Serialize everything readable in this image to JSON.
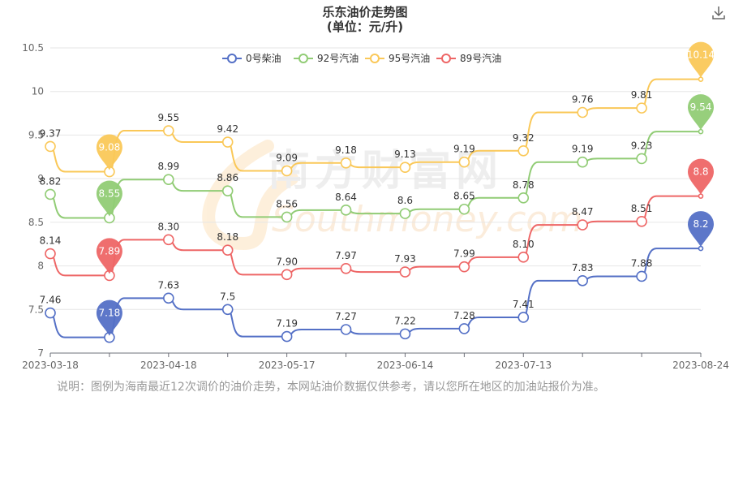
{
  "chart_data": {
    "type": "line",
    "title": "乐东油价走势图",
    "subtitle": "(单位：元/升)",
    "x": [
      "2023-03-18",
      "2023-03-31",
      "2023-04-18",
      "2023-05-04",
      "2023-05-17",
      "2023-06-01",
      "2023-06-14",
      "2023-06-28",
      "2023-07-13",
      "2023-07-27",
      "2023-08-09",
      "2023-08-24"
    ],
    "x_tick_labels": [
      "2023-03-18",
      "2023-04-18",
      "2023-05-17",
      "2023-06-14",
      "2023-07-13",
      "2023-08-24"
    ],
    "ylim": [
      7,
      10.5
    ],
    "y_ticks": [
      "7",
      "7.5",
      "8",
      "8.5",
      "9",
      "9.5",
      "10",
      "10.5"
    ],
    "legend": "top-center",
    "series": [
      {
        "name": "0号柴油",
        "color": "#5470c6",
        "values": [
          7.46,
          7.18,
          7.63,
          7.5,
          7.19,
          7.27,
          7.22,
          7.28,
          7.41,
          7.83,
          7.88,
          8.2
        ],
        "labels": [
          "7.46",
          "7.18",
          "7.63",
          "7.5",
          "7.19",
          "7.27",
          "7.22",
          "7.28",
          "7.41",
          "7.83",
          "7.88",
          "8.2"
        ],
        "markers": [
          {
            "index": 1,
            "label": "7.18"
          },
          {
            "index": 11,
            "label": "8.2"
          }
        ]
      },
      {
        "name": "92号汽油",
        "color": "#91cc75",
        "values": [
          8.82,
          8.55,
          8.99,
          8.86,
          8.56,
          8.64,
          8.6,
          8.65,
          8.78,
          9.19,
          9.23,
          9.54
        ],
        "labels": [
          "8.82",
          "8.55",
          "8.99",
          "8.86",
          "8.56",
          "8.64",
          "8.6",
          "8.65",
          "8.78",
          "9.19",
          "9.23",
          "9.54"
        ],
        "markers": [
          {
            "index": 1,
            "label": "8.55"
          },
          {
            "index": 11,
            "label": "9.54"
          }
        ]
      },
      {
        "name": "95号汽油",
        "color": "#fac858",
        "values": [
          9.37,
          9.08,
          9.55,
          9.42,
          9.09,
          9.18,
          9.13,
          9.19,
          9.32,
          9.76,
          9.81,
          10.14
        ],
        "labels": [
          "9.37",
          "9.08",
          "9.55",
          "9.42",
          "9.09",
          "9.18",
          "9.13",
          "9.19",
          "9.32",
          "9.76",
          "9.81",
          "10.14"
        ],
        "markers": [
          {
            "index": 1,
            "label": "9.08"
          },
          {
            "index": 11,
            "label": "10.14"
          }
        ]
      },
      {
        "name": "89号汽油",
        "color": "#ee6666",
        "values": [
          8.14,
          7.89,
          8.3,
          8.18,
          7.9,
          7.97,
          7.93,
          7.99,
          8.1,
          8.47,
          8.51,
          8.8
        ],
        "labels": [
          "8.14",
          "7.89",
          "8.30",
          "8.18",
          "7.90",
          "7.97",
          "7.93",
          "7.99",
          "8.10",
          "8.47",
          "8.51",
          "8.8"
        ],
        "markers": [
          {
            "index": 1,
            "label": "7.89"
          },
          {
            "index": 11,
            "label": "8.8"
          }
        ]
      }
    ]
  },
  "watermark": {
    "line1": "南方财富网",
    "line2": "Southmoney.com"
  },
  "note": "说明：图例为海南最近12次调价的油价走势，本网站油价数据仅供参考，请以您所在地区的加油站报价为准。",
  "toolbar": {
    "download_icon": "download-icon"
  }
}
